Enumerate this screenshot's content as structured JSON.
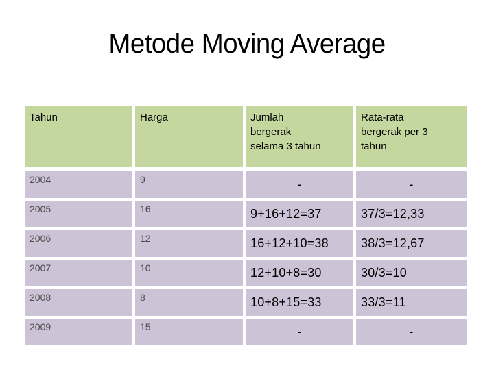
{
  "slide": {
    "title": "Metode Moving Average"
  },
  "table": {
    "columns": [
      "Tahun",
      "Harga",
      "Jumlah\nbergerak\nselama 3 tahun",
      "Rata-rata\nbergerak per 3\ntahun"
    ],
    "rows": [
      {
        "tahun": "2004",
        "harga": "9",
        "jumlah": "-",
        "rata": "-"
      },
      {
        "tahun": "2005",
        "harga": "16",
        "jumlah": "9+16+12=37",
        "rata": "37/3=12,33"
      },
      {
        "tahun": "2006",
        "harga": "12",
        "jumlah": "16+12+10=38",
        "rata": "38/3=12,67"
      },
      {
        "tahun": "2007",
        "harga": "10",
        "jumlah": "12+10+8=30",
        "rata": "30/3=10"
      },
      {
        "tahun": "2008",
        "harga": "8",
        "jumlah": "10+8+15=33",
        "rata": "33/3=11"
      },
      {
        "tahun": "2009",
        "harga": "15",
        "jumlah": "-",
        "rata": "-"
      }
    ],
    "empty_marker": "-"
  },
  "colors": {
    "header_bg": "#c4d79e",
    "row_bg": "#ccc3d7",
    "cell_border": "#ffffff",
    "muted_text": "#4d4d4d",
    "strong_text": "#000000",
    "slide_bg": "#ffffff"
  }
}
